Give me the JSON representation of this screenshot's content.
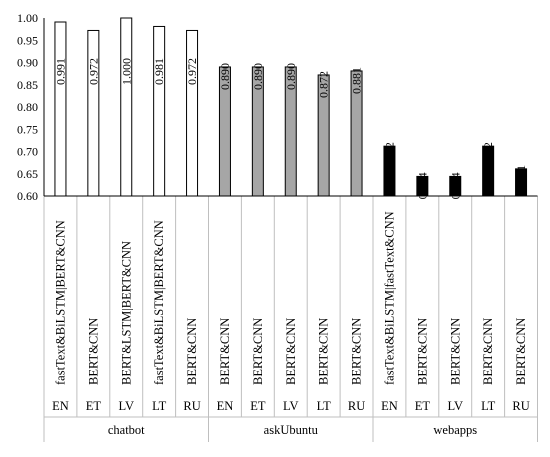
{
  "chart_data": {
    "type": "bar",
    "title": "",
    "xlabel": "",
    "ylabel": "",
    "ylim": [
      0.6,
      1.0
    ],
    "yticks": [
      "0.60",
      "0.65",
      "0.70",
      "0.75",
      "0.80",
      "0.85",
      "0.90",
      "0.95",
      "1.00"
    ],
    "grid": false,
    "groups": [
      {
        "name": "chatbot",
        "color": "#ffffff",
        "bars": [
          {
            "lang": "EN",
            "model": "fastText&BiLSTM|BERT&CNN",
            "value": 0.991,
            "label": "0.991"
          },
          {
            "lang": "ET",
            "model": "BERT&CNN",
            "value": 0.972,
            "label": "0.972"
          },
          {
            "lang": "LV",
            "model": "BERT&LSTM|BERT&CNN",
            "value": 1.0,
            "label": "1.000"
          },
          {
            "lang": "LT",
            "model": "fastText&BiLSTM|BERT&CNN",
            "value": 0.981,
            "label": "0.981"
          },
          {
            "lang": "RU",
            "model": "BERT&CNN",
            "value": 0.972,
            "label": "0.972"
          }
        ]
      },
      {
        "name": "askUbuntu",
        "color": "#a6a6a6",
        "bars": [
          {
            "lang": "EN",
            "model": "BERT&CNN",
            "value": 0.89,
            "label": "0.890"
          },
          {
            "lang": "ET",
            "model": "BERT&CNN",
            "value": 0.89,
            "label": "0.890"
          },
          {
            "lang": "LV",
            "model": "BERT&CNN",
            "value": 0.89,
            "label": "0.890"
          },
          {
            "lang": "LT",
            "model": "BERT&CNN",
            "value": 0.872,
            "label": "0.872"
          },
          {
            "lang": "RU",
            "model": "BERT&CNN",
            "value": 0.881,
            "label": "0.881"
          }
        ]
      },
      {
        "name": "webapps",
        "color": "#000000",
        "bars": [
          {
            "lang": "EN",
            "model": "fastText&BiLSTM|fastText&CNN",
            "value": 0.712,
            "label": "0.712"
          },
          {
            "lang": "ET",
            "model": "BERT&CNN",
            "value": 0.644,
            "label": "0.644"
          },
          {
            "lang": "LV",
            "model": "BERT&CNN",
            "value": 0.644,
            "label": "0.644"
          },
          {
            "lang": "LT",
            "model": "BERT&CNN",
            "value": 0.712,
            "label": "0.712"
          },
          {
            "lang": "RU",
            "model": "BERT&CNN",
            "value": 0.661,
            "label": "0.661"
          }
        ]
      }
    ]
  }
}
